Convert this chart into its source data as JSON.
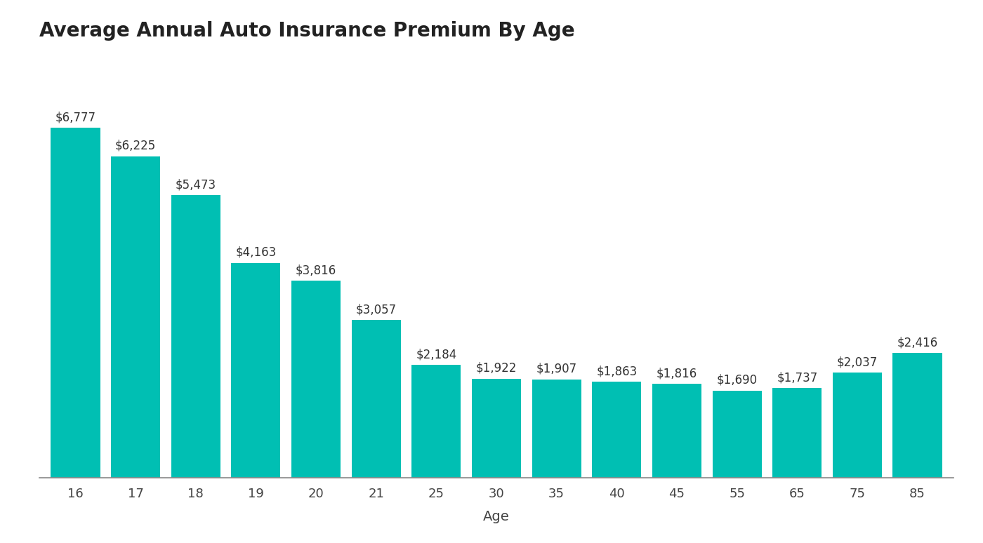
{
  "title": "Average Annual Auto Insurance Premium By Age",
  "xlabel": "Age",
  "ylabel": "",
  "categories": [
    "16",
    "17",
    "18",
    "19",
    "20",
    "21",
    "25",
    "30",
    "35",
    "40",
    "45",
    "55",
    "65",
    "75",
    "85"
  ],
  "values": [
    6777,
    6225,
    5473,
    4163,
    3816,
    3057,
    2184,
    1922,
    1907,
    1863,
    1816,
    1690,
    1737,
    2037,
    2416
  ],
  "labels": [
    "$6,777",
    "$6,225",
    "$5,473",
    "$4,163",
    "$3,816",
    "$3,057",
    "$2,184",
    "$1,922",
    "$1,907",
    "$1,863",
    "$1,816",
    "$1,690",
    "$1,737",
    "$2,037",
    "$2,416"
  ],
  "bar_color": "#00BFB3",
  "background_color": "#ffffff",
  "title_fontsize": 20,
  "label_fontsize": 12,
  "tick_fontsize": 13,
  "xlabel_fontsize": 14,
  "ylim": [
    0,
    8200
  ],
  "bar_width": 0.82
}
